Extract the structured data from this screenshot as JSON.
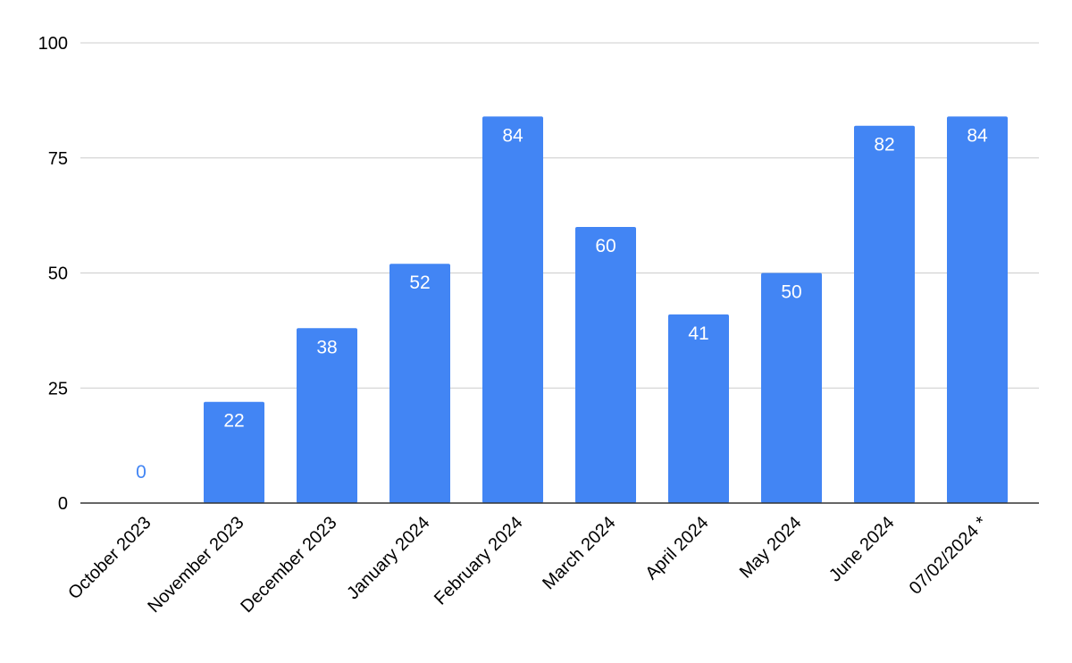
{
  "chart_data": {
    "type": "bar",
    "title": "",
    "xlabel": "",
    "ylabel": "",
    "categories": [
      "October 2023",
      "November 2023",
      "December 2023",
      "January 2024",
      "February 2024",
      "March 2024",
      "April 2024",
      "May 2024",
      "June 2024",
      "07/02/2024 *"
    ],
    "values": [
      0,
      22,
      38,
      52,
      84,
      60,
      41,
      50,
      82,
      84
    ],
    "ylim": [
      0,
      100
    ],
    "yticks": [
      0,
      25,
      50,
      75,
      100
    ],
    "grid": true,
    "legend": "none",
    "bar_color": "#4285f4",
    "label_color_inside": "#ffffff",
    "label_color_outside": "#4285f4"
  }
}
